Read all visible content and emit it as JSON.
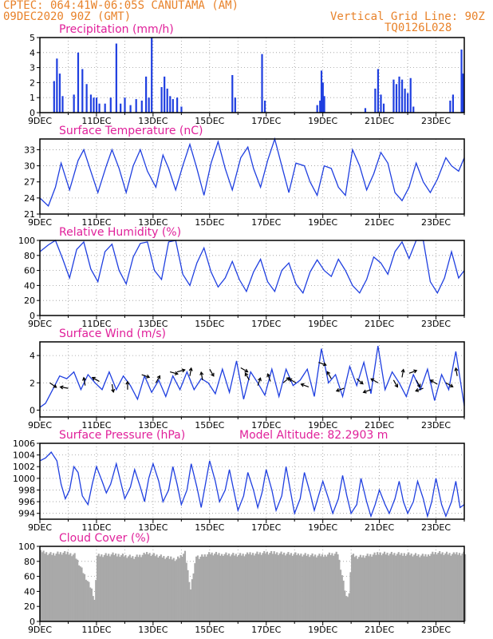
{
  "header": {
    "line1": "CPTEC:   064:41W-06:05S  CANUTAMA (AM)",
    "line2": "09DEC2020 90Z (GMT)",
    "grid_note": "Vertical Grid Line: 90Z",
    "code": "TQ0126L028"
  },
  "colors": {
    "header": "#e8822a",
    "title": "#e0209a",
    "series": "#1f3fe0",
    "cloud": "#a9a9a9",
    "grid": "#999999"
  },
  "x_labels": [
    "9DEC",
    "11DEC",
    "13DEC",
    "15DEC",
    "17DEC",
    "19DEC",
    "21DEC",
    "23DEC"
  ],
  "chart_data": [
    {
      "type": "bar",
      "title": "Precipitation (mm/h)",
      "ylim": [
        0,
        5
      ],
      "yticks": [
        0,
        1,
        2,
        3,
        4,
        5
      ],
      "x_range_days": [
        9,
        24
      ],
      "x": [
        9.5,
        9.6,
        9.7,
        9.8,
        10.2,
        10.35,
        10.5,
        10.65,
        10.8,
        10.9,
        11.0,
        11.1,
        11.3,
        11.5,
        11.7,
        11.85,
        12.0,
        12.2,
        12.4,
        12.6,
        12.75,
        12.85,
        12.95,
        13.3,
        13.4,
        13.5,
        13.6,
        13.7,
        13.85,
        14.0,
        15.8,
        15.9,
        16.85,
        16.95,
        18.8,
        18.9,
        18.95,
        19.0,
        19.05,
        20.5,
        20.85,
        20.95,
        21.05,
        21.15,
        21.5,
        21.6,
        21.7,
        21.8,
        21.9,
        22.0,
        22.1,
        22.2,
        23.5,
        23.6,
        23.9,
        23.95
      ],
      "values": [
        2.1,
        3.6,
        2.6,
        1.1,
        1.2,
        4.0,
        2.9,
        1.9,
        1.2,
        1.0,
        1.0,
        0.6,
        0.6,
        1.0,
        4.6,
        0.6,
        1.0,
        0.5,
        0.9,
        0.8,
        2.4,
        1.0,
        5.0,
        1.7,
        2.4,
        1.6,
        1.1,
        0.9,
        1.0,
        0.4,
        2.5,
        1.0,
        3.9,
        0.8,
        0.5,
        0.8,
        2.8,
        2.0,
        1.1,
        0.3,
        1.6,
        2.9,
        1.2,
        0.6,
        2.2,
        1.9,
        2.4,
        2.2,
        1.6,
        1.3,
        2.3,
        0.4,
        0.8,
        1.2,
        4.2,
        2.6
      ]
    },
    {
      "type": "line",
      "title": "Surface Temperature (nC)",
      "ylim": [
        21,
        35
      ],
      "yticks": [
        21,
        24,
        27,
        30,
        33
      ],
      "x_range_days": [
        9,
        24
      ],
      "x": [
        9.0,
        9.3,
        9.55,
        9.75,
        10.05,
        10.35,
        10.55,
        10.8,
        11.05,
        11.35,
        11.55,
        11.8,
        12.05,
        12.3,
        12.55,
        12.8,
        13.1,
        13.35,
        13.55,
        13.8,
        14.05,
        14.3,
        14.55,
        14.8,
        15.05,
        15.3,
        15.55,
        15.8,
        16.1,
        16.35,
        16.55,
        16.8,
        17.05,
        17.3,
        17.55,
        17.8,
        18.05,
        18.35,
        18.55,
        18.8,
        19.05,
        19.3,
        19.55,
        19.8,
        20.05,
        20.3,
        20.55,
        20.8,
        21.05,
        21.3,
        21.55,
        21.8,
        22.05,
        22.3,
        22.55,
        22.8,
        23.05,
        23.35,
        23.55,
        23.8,
        24.0
      ],
      "values": [
        24,
        22.5,
        26,
        30.5,
        25.5,
        31,
        33,
        29,
        25,
        30,
        33,
        29.5,
        25,
        30,
        33,
        29,
        26,
        32,
        29.5,
        25.5,
        30,
        34,
        29.5,
        24.5,
        30.5,
        34.5,
        29.5,
        25.5,
        31.5,
        33.5,
        29.5,
        26,
        31,
        35,
        30,
        25,
        30.5,
        30,
        27,
        24.5,
        30,
        29.5,
        26,
        24.5,
        33,
        30,
        25.5,
        28.5,
        32.5,
        30.5,
        25,
        23.5,
        26,
        30.5,
        27,
        25,
        27.5,
        31.5,
        30,
        29,
        31.5
      ]
    },
    {
      "type": "line",
      "title": "Relative Humidity (%)",
      "ylim": [
        0,
        100
      ],
      "yticks": [
        0,
        20,
        40,
        60,
        80,
        100
      ],
      "x_range_days": [
        9,
        24
      ],
      "x": [
        9.0,
        9.3,
        9.55,
        9.8,
        10.05,
        10.3,
        10.55,
        10.8,
        11.05,
        11.3,
        11.55,
        11.8,
        12.05,
        12.3,
        12.55,
        12.8,
        13.05,
        13.3,
        13.55,
        13.8,
        14.05,
        14.3,
        14.55,
        14.8,
        15.05,
        15.3,
        15.55,
        15.8,
        16.05,
        16.3,
        16.55,
        16.8,
        17.05,
        17.3,
        17.55,
        17.8,
        18.05,
        18.3,
        18.55,
        18.8,
        19.05,
        19.3,
        19.55,
        19.8,
        20.05,
        20.3,
        20.55,
        20.8,
        21.05,
        21.3,
        21.55,
        21.8,
        22.05,
        22.3,
        22.55,
        22.8,
        23.05,
        23.3,
        23.55,
        23.8,
        24.0
      ],
      "values": [
        85,
        94,
        100,
        76,
        50,
        88,
        98,
        62,
        45,
        85,
        95,
        60,
        42,
        78,
        96,
        98,
        60,
        48,
        98,
        100,
        55,
        40,
        70,
        90,
        58,
        38,
        50,
        72,
        48,
        32,
        58,
        75,
        45,
        32,
        60,
        70,
        42,
        30,
        58,
        74,
        60,
        52,
        75,
        60,
        40,
        30,
        48,
        78,
        70,
        55,
        85,
        98,
        76,
        100,
        100,
        45,
        30,
        50,
        85,
        50,
        60
      ]
    },
    {
      "type": "line",
      "title": "Surface Wind (m/s)",
      "ylim": [
        -0.5,
        5
      ],
      "yticks": [
        0,
        2,
        4
      ],
      "x_range_days": [
        9,
        24
      ],
      "x": [
        9.0,
        9.2,
        9.45,
        9.7,
        9.95,
        10.2,
        10.45,
        10.7,
        10.95,
        11.2,
        11.45,
        11.7,
        11.95,
        12.2,
        12.45,
        12.7,
        12.95,
        13.2,
        13.45,
        13.7,
        13.95,
        14.2,
        14.45,
        14.7,
        14.95,
        15.2,
        15.45,
        15.7,
        15.95,
        16.2,
        16.45,
        16.7,
        16.95,
        17.2,
        17.45,
        17.7,
        17.95,
        18.2,
        18.45,
        18.7,
        18.95,
        19.2,
        19.45,
        19.7,
        19.95,
        20.2,
        20.45,
        20.7,
        20.95,
        21.2,
        21.45,
        21.7,
        21.95,
        22.2,
        22.45,
        22.7,
        22.95,
        23.2,
        23.45,
        23.7,
        24.0
      ],
      "values": [
        0.2,
        0.5,
        1.5,
        2.5,
        2.3,
        2.8,
        1.5,
        2.6,
        2.0,
        1.5,
        2.8,
        1.5,
        2.5,
        1.8,
        0.8,
        2.5,
        1.3,
        2.2,
        1.0,
        2.5,
        1.5,
        2.8,
        1.5,
        2.3,
        2.0,
        1.2,
        3.0,
        1.3,
        3.6,
        0.8,
        2.8,
        2.0,
        1.1,
        3.0,
        1.0,
        3.0,
        1.8,
        2.2,
        3.0,
        1.0,
        4.5,
        2.0,
        2.6,
        1.0,
        3.2,
        1.8,
        3.5,
        1.2,
        4.7,
        1.5,
        2.8,
        2.0,
        1.0,
        2.6,
        1.5,
        3.0,
        0.7,
        2.6,
        1.5,
        4.3,
        0.3
      ],
      "wind_barbs": [
        {
          "x": 9.35,
          "speed": 2.0,
          "dir_deg": -35
        },
        {
          "x": 10.0,
          "speed": 1.6,
          "dir_deg": 170
        },
        {
          "x": 10.6,
          "speed": 1.8,
          "dir_deg": 100
        },
        {
          "x": 11.1,
          "speed": 2.1,
          "dir_deg": 150
        },
        {
          "x": 11.55,
          "speed": 1.9,
          "dir_deg": -80
        },
        {
          "x": 12.1,
          "speed": 1.5,
          "dir_deg": 90
        },
        {
          "x": 12.6,
          "speed": 2.6,
          "dir_deg": -20
        },
        {
          "x": 13.1,
          "speed": 2.0,
          "dir_deg": 60
        },
        {
          "x": 13.6,
          "speed": 2.8,
          "dir_deg": -15
        },
        {
          "x": 13.85,
          "speed": 2.8,
          "dir_deg": 15
        },
        {
          "x": 14.3,
          "speed": 2.5,
          "dir_deg": 80
        },
        {
          "x": 14.75,
          "speed": 2.2,
          "dir_deg": 100
        },
        {
          "x": 15.0,
          "speed": 3.0,
          "dir_deg": -60
        },
        {
          "x": 16.1,
          "speed": 3.1,
          "dir_deg": -30
        },
        {
          "x": 16.4,
          "speed": 2.2,
          "dir_deg": 120
        },
        {
          "x": 16.7,
          "speed": 1.8,
          "dir_deg": 70
        },
        {
          "x": 17.15,
          "speed": 2.1,
          "dir_deg": 110
        },
        {
          "x": 17.6,
          "speed": 2.0,
          "dir_deg": 40
        },
        {
          "x": 18.05,
          "speed": 2.0,
          "dir_deg": 150
        },
        {
          "x": 18.5,
          "speed": 1.7,
          "dir_deg": 160
        },
        {
          "x": 18.85,
          "speed": 3.5,
          "dir_deg": -20
        },
        {
          "x": 19.3,
          "speed": 2.3,
          "dir_deg": 120
        },
        {
          "x": 19.75,
          "speed": 1.6,
          "dir_deg": 200
        },
        {
          "x": 20.2,
          "speed": 2.3,
          "dir_deg": -40
        },
        {
          "x": 20.7,
          "speed": 1.5,
          "dir_deg": 200
        },
        {
          "x": 20.95,
          "speed": 2.0,
          "dir_deg": 150
        },
        {
          "x": 21.5,
          "speed": 2.2,
          "dir_deg": -60
        },
        {
          "x": 21.8,
          "speed": 2.4,
          "dir_deg": 80
        },
        {
          "x": 22.05,
          "speed": 2.7,
          "dir_deg": 20
        },
        {
          "x": 22.3,
          "speed": 2.2,
          "dir_deg": -60
        },
        {
          "x": 22.55,
          "speed": 1.6,
          "dir_deg": 200
        },
        {
          "x": 23.05,
          "speed": 1.9,
          "dir_deg": 150
        },
        {
          "x": 23.35,
          "speed": 2.0,
          "dir_deg": -30
        },
        {
          "x": 23.75,
          "speed": 2.5,
          "dir_deg": 100
        }
      ]
    },
    {
      "type": "line",
      "title": "Surface Pressure (hPa)",
      "subtitle": "Model Altitude: 82.2903 m",
      "ylim": [
        993,
        1006
      ],
      "yticks": [
        994,
        996,
        998,
        1000,
        1002,
        1004,
        1006
      ],
      "x_range_days": [
        9,
        24
      ],
      "x": [
        9.0,
        9.2,
        9.4,
        9.6,
        9.75,
        9.9,
        10.05,
        10.2,
        10.35,
        10.5,
        10.7,
        10.85,
        11.0,
        11.2,
        11.35,
        11.5,
        11.7,
        11.85,
        12.0,
        12.2,
        12.35,
        12.55,
        12.7,
        12.85,
        13.0,
        13.2,
        13.35,
        13.55,
        13.7,
        13.85,
        14.0,
        14.2,
        14.35,
        14.55,
        14.7,
        14.85,
        15.0,
        15.2,
        15.35,
        15.55,
        15.7,
        15.85,
        16.0,
        16.2,
        16.35,
        16.55,
        16.7,
        16.85,
        17.0,
        17.2,
        17.35,
        17.55,
        17.7,
        17.85,
        18.0,
        18.2,
        18.35,
        18.55,
        18.7,
        18.85,
        19.0,
        19.2,
        19.35,
        19.55,
        19.7,
        19.85,
        20.0,
        20.2,
        20.35,
        20.55,
        20.7,
        20.85,
        21.0,
        21.2,
        21.35,
        21.55,
        21.7,
        21.85,
        22.0,
        22.2,
        22.35,
        22.55,
        22.7,
        22.85,
        23.0,
        23.2,
        23.35,
        23.55,
        23.7,
        23.85,
        24.0
      ],
      "values": [
        1003.0,
        1003.5,
        1004.5,
        1003.0,
        999.0,
        996.5,
        998.0,
        1002.0,
        1001.0,
        997.0,
        995.5,
        999.0,
        1002.0,
        999.5,
        997.5,
        999.0,
        1002.5,
        999.5,
        996.5,
        998.5,
        1001.5,
        998.5,
        996.0,
        1000.0,
        1002.5,
        999.5,
        996.0,
        998.0,
        1002.0,
        999.0,
        995.5,
        998.0,
        1002.5,
        998.5,
        995.0,
        999.0,
        1003.0,
        999.5,
        996.0,
        998.0,
        1001.5,
        998.0,
        994.5,
        997.0,
        1001.0,
        998.0,
        995.0,
        997.5,
        1001.5,
        998.0,
        994.5,
        997.0,
        1002.0,
        998.0,
        994.0,
        996.5,
        1001.0,
        997.5,
        994.5,
        997.0,
        999.5,
        996.5,
        994.0,
        996.5,
        1000.5,
        997.0,
        994.0,
        995.5,
        1000.0,
        996.0,
        993.5,
        995.5,
        998.0,
        995.5,
        994.0,
        996.5,
        999.5,
        996.0,
        994.0,
        996.0,
        999.5,
        996.5,
        993.5,
        996.0,
        1000.0,
        995.5,
        993.5,
        996.0,
        999.5,
        995.0,
        995.5
      ]
    },
    {
      "type": "area",
      "title": "Cloud Cover (%)",
      "ylim": [
        0,
        100
      ],
      "yticks": [
        0,
        20,
        40,
        60,
        80,
        100
      ],
      "x_range_days": [
        9,
        24
      ],
      "x": [
        9.0,
        9.4,
        9.8,
        10.2,
        10.8,
        10.9,
        11.0,
        11.6,
        12.3,
        12.8,
        13.0,
        13.8,
        14.1,
        14.3,
        14.5,
        14.6,
        15.0,
        16.0,
        17.0,
        18.0,
        18.8,
        19.5,
        19.8,
        19.9,
        20.0,
        20.2,
        21.0,
        22.0,
        22.5,
        23.0,
        23.6,
        24.0
      ],
      "values": [
        95,
        92,
        94,
        91,
        45,
        30,
        90,
        92,
        88,
        93,
        91,
        85,
        94,
        45,
        90,
        88,
        93,
        91,
        94,
        92,
        90,
        93,
        35,
        40,
        91,
        88,
        93,
        92,
        90,
        94,
        92,
        93
      ]
    }
  ]
}
